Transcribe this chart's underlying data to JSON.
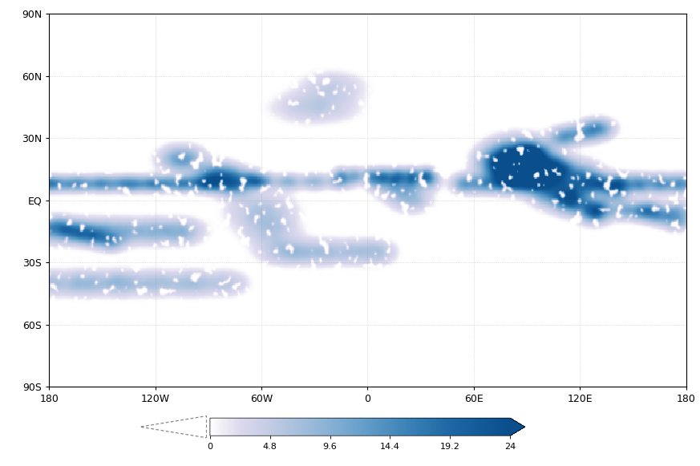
{
  "title": "",
  "colorbar_levels": [
    0,
    4.8,
    9.6,
    14.4,
    19.2,
    24
  ],
  "background_color": "#ffffff",
  "data_bg_color": "#eaeaf2",
  "no_data_color": "#f4f4f8",
  "lat_labels": [
    "90N",
    "60N",
    "30N",
    "EQ",
    "30S",
    "60S",
    "90S"
  ],
  "lat_ticks": [
    90,
    60,
    30,
    0,
    -30,
    -60,
    -90
  ],
  "lon_labels": [
    "180",
    "120W",
    "60W",
    "0",
    "60E",
    "120E",
    "180"
  ],
  "lon_ticks": [
    -180,
    -120,
    -60,
    0,
    60,
    120,
    180
  ],
  "xlim": [
    -180,
    180
  ],
  "ylim": [
    -90,
    90
  ],
  "vmin": 0,
  "vmax": 24,
  "colormap_nodes": [
    [
      0.0,
      "#ffffff"
    ],
    [
      0.04,
      "#f0eef6"
    ],
    [
      0.1,
      "#dcd8ee"
    ],
    [
      0.2,
      "#c2cce4"
    ],
    [
      0.35,
      "#96b8d8"
    ],
    [
      0.5,
      "#68a0cc"
    ],
    [
      0.65,
      "#3d84b8"
    ],
    [
      0.8,
      "#1c68a4"
    ],
    [
      1.0,
      "#0a4e8c"
    ]
  ],
  "grid_color": "#888888",
  "grid_alpha": 0.5,
  "coastline_color": "#333333",
  "coastline_lw": 0.5
}
